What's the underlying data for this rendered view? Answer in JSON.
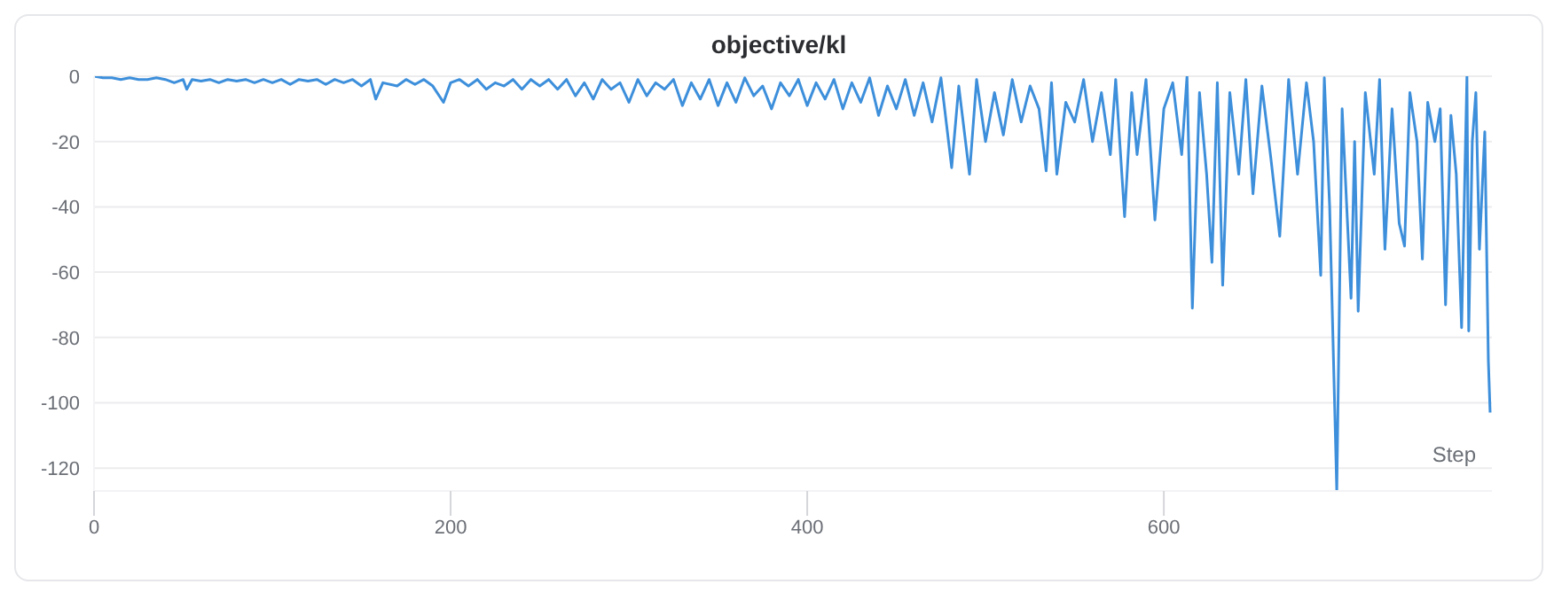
{
  "chart_data": {
    "type": "line",
    "title": "objective/kl",
    "xlabel": "Step",
    "xlim": [
      0,
      784
    ],
    "xticks": [
      0,
      200,
      400,
      600
    ],
    "ylim": [
      -127,
      0
    ],
    "yticks": [
      0,
      -20,
      -40,
      -60,
      -80,
      -100,
      -120
    ],
    "grid": "y",
    "legend": false,
    "series": [
      {
        "color": "#3d8fdb",
        "x": [
          0,
          5,
          10,
          15,
          20,
          25,
          30,
          35,
          40,
          45,
          50,
          52,
          55,
          60,
          65,
          70,
          75,
          80,
          85,
          90,
          95,
          100,
          105,
          110,
          115,
          120,
          125,
          130,
          135,
          140,
          145,
          150,
          155,
          158,
          162,
          170,
          175,
          180,
          185,
          190,
          196,
          200,
          205,
          210,
          215,
          220,
          225,
          230,
          235,
          240,
          245,
          250,
          255,
          260,
          265,
          270,
          275,
          280,
          285,
          290,
          295,
          300,
          305,
          310,
          315,
          320,
          325,
          330,
          335,
          340,
          345,
          350,
          355,
          360,
          365,
          370,
          375,
          380,
          385,
          390,
          395,
          400,
          405,
          410,
          415,
          420,
          425,
          430,
          435,
          440,
          445,
          450,
          455,
          460,
          465,
          470,
          475,
          481,
          485,
          491,
          495,
          500,
          505,
          510,
          515,
          520,
          525,
          530,
          534,
          537,
          540,
          545,
          550,
          555,
          560,
          565,
          570,
          573,
          578,
          582,
          585,
          590,
          595,
          600,
          605,
          610,
          613,
          616,
          620,
          624,
          627,
          630,
          633,
          637,
          642,
          646,
          650,
          655,
          660,
          665,
          670,
          675,
          680,
          684,
          688,
          690,
          693,
          697,
          700,
          705,
          707,
          709,
          713,
          718,
          721,
          724,
          728,
          732,
          735,
          738,
          742,
          745,
          748,
          752,
          755,
          758,
          761,
          764,
          767,
          770,
          771,
          773,
          775,
          777,
          780,
          782,
          783
        ],
        "values": [
          0,
          -0.5,
          -0.5,
          -1,
          -0.5,
          -1,
          -1,
          -0.5,
          -1,
          -2,
          -1,
          -4,
          -1,
          -1.5,
          -1,
          -2,
          -1,
          -1.5,
          -1,
          -2,
          -1,
          -2,
          -1,
          -2.5,
          -1,
          -1.5,
          -1,
          -2.5,
          -1,
          -2,
          -1,
          -3,
          -1,
          -7,
          -2,
          -3,
          -1,
          -2.5,
          -1,
          -3,
          -8,
          -2,
          -1,
          -3,
          -1,
          -4,
          -2,
          -3,
          -1,
          -4,
          -1,
          -3,
          -1,
          -4,
          -1,
          -6,
          -2,
          -7,
          -1,
          -4,
          -2,
          -8,
          -1,
          -6,
          -2,
          -4,
          -1,
          -9,
          -2,
          -7,
          -1,
          -9,
          -2,
          -8,
          -0.5,
          -6,
          -3,
          -10,
          -2,
          -6,
          -1,
          -9,
          -2,
          -7,
          -1,
          -10,
          -2,
          -8,
          -0.5,
          -12,
          -3,
          -10,
          -1,
          -12,
          -2,
          -14,
          -0.5,
          -28,
          -3,
          -30,
          -1,
          -20,
          -5,
          -18,
          -1,
          -14,
          -3,
          -10,
          -29,
          -2,
          -30,
          -8,
          -14,
          -1,
          -20,
          -5,
          -24,
          -1,
          -43,
          -5,
          -24,
          -1,
          -44,
          -10,
          -2,
          -24,
          0,
          -71,
          -5,
          -30,
          -57,
          -2,
          -64,
          -5,
          -30,
          -1,
          -36,
          -3,
          -25,
          -49,
          -1,
          -30,
          -2,
          -20,
          -61,
          -0.5,
          -40,
          -127,
          -10,
          -68,
          -20,
          -72,
          -5,
          -30,
          -1,
          -53,
          -10,
          -45,
          -52,
          -5,
          -20,
          -56,
          -8,
          -20,
          -10,
          -70,
          -12,
          -30,
          -77,
          0,
          -78,
          -20,
          -5,
          -53,
          -17,
          -87,
          -103
        ]
      }
    ]
  }
}
